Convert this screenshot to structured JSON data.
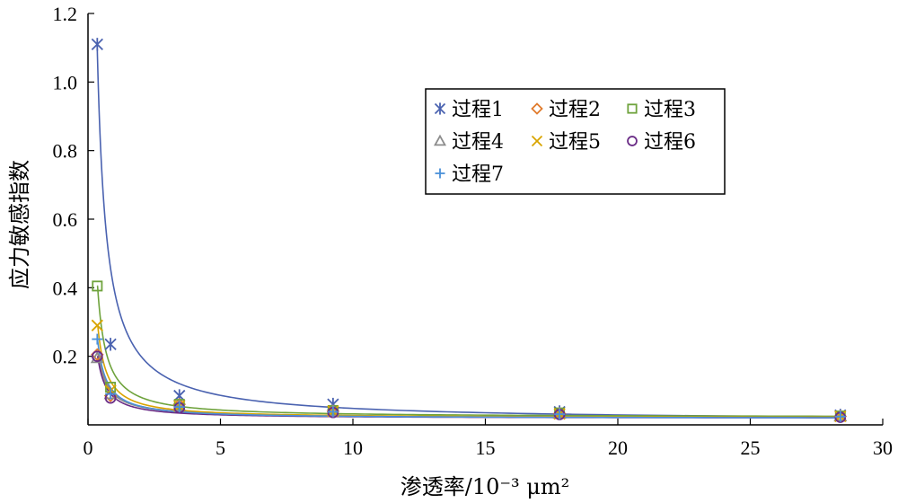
{
  "chart_data": {
    "type": "scatter",
    "title": "",
    "xlabel": "渗透率/10⁻³ μm²",
    "ylabel": "应力敏感指数",
    "xlim": [
      0,
      30
    ],
    "ylim": [
      0,
      1.2
    ],
    "x_ticks": [
      "0",
      "5",
      "10",
      "15",
      "20",
      "25",
      "30"
    ],
    "y_ticks": [
      "0.2",
      "0.4",
      "0.6",
      "0.8",
      "1.0",
      "1.2"
    ],
    "grid": false,
    "legend": "top-right",
    "x": [
      0.35,
      0.85,
      3.45,
      9.25,
      17.8,
      28.4
    ],
    "series": [
      {
        "name": "过程1",
        "marker": "asterisk",
        "color": "#4a62b0",
        "values": [
          1.11,
          0.235,
          0.085,
          0.06,
          0.038,
          0.028
        ],
        "fit": [
          0.38,
          -1.0,
          0.01
        ]
      },
      {
        "name": "过程2",
        "marker": "diamond",
        "color": "#e07b2c",
        "values": [
          0.205,
          0.085,
          0.06,
          0.04,
          0.033,
          0.025
        ],
        "fit": [
          0.07,
          -1.05,
          0.02
        ]
      },
      {
        "name": "过程3",
        "marker": "square",
        "color": "#6fa33d",
        "values": [
          0.405,
          0.11,
          0.06,
          0.042,
          0.035,
          0.026
        ],
        "fit": [
          0.125,
          -1.1,
          0.022
        ]
      },
      {
        "name": "过程4",
        "marker": "triangle",
        "color": "#8c8c8c",
        "values": [
          0.195,
          0.09,
          0.055,
          0.04,
          0.033,
          0.025
        ],
        "fit": [
          0.067,
          -1.05,
          0.02
        ]
      },
      {
        "name": "过程5",
        "marker": "x",
        "color": "#d9a400",
        "values": [
          0.29,
          0.1,
          0.055,
          0.04,
          0.032,
          0.025
        ],
        "fit": [
          0.09,
          -1.1,
          0.02
        ]
      },
      {
        "name": "过程6",
        "marker": "circle",
        "color": "#6a2c86",
        "values": [
          0.2,
          0.078,
          0.05,
          0.036,
          0.03,
          0.022
        ],
        "fit": [
          0.06,
          -1.1,
          0.019
        ]
      },
      {
        "name": "过程7",
        "marker": "plus",
        "color": "#4a90d9",
        "values": [
          0.25,
          0.09,
          0.052,
          0.038,
          0.031,
          0.024
        ],
        "fit": [
          0.075,
          -1.1,
          0.019
        ]
      }
    ]
  }
}
